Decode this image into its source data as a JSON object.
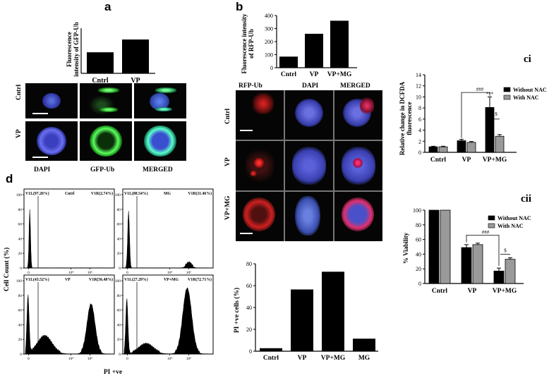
{
  "panels": {
    "a": {
      "letter": "a",
      "chart_data": {
        "type": "bar",
        "categories": [
          "Cntrl",
          "VP"
        ],
        "values": [
          0.28,
          0.45
        ],
        "ylabel": "Fluorescence intensity of GFP-Ub",
        "ylim": [
          0,
          0.6
        ]
      },
      "row_labels": [
        "Cntrl",
        "VP"
      ],
      "col_labels": [
        "DAPI",
        "GFP-Ub",
        "MERGED"
      ]
    },
    "b": {
      "letter": "b",
      "chart_data": {
        "type": "bar",
        "categories": [
          "Cntrl",
          "VP",
          "VP+MG"
        ],
        "values": [
          85,
          260,
          360
        ],
        "ylabel": "Fluorescence intensity of RFP-Ub",
        "yticks": [
          "0",
          "100",
          "200",
          "300",
          "400"
        ],
        "ylim": [
          0,
          400
        ]
      },
      "col_labels": [
        "RFP-Ub",
        "DAPI",
        "MERGED"
      ],
      "row_labels": [
        "Cntrl",
        "VP",
        "VP+MG"
      ]
    },
    "pi": {
      "chart_data": {
        "type": "bar",
        "categories": [
          "Cntrl",
          "VP",
          "VP+MG",
          "MG"
        ],
        "values": [
          2.74,
          56.48,
          72.71,
          11.46
        ],
        "ylabel": "PI +ve cells (%)",
        "yticks": [
          "0",
          "20",
          "40",
          "60",
          "80"
        ],
        "ylim": [
          0,
          80
        ]
      }
    },
    "ci": {
      "label": "ci",
      "chart_data": {
        "type": "bar",
        "categories": [
          "Cntrl",
          "VP",
          "VP+MG"
        ],
        "series": [
          {
            "name": "Without NAC",
            "values": [
              1.0,
              2.1,
              8.1
            ],
            "errors": [
              0.1,
              0.25,
              1.9
            ]
          },
          {
            "name": "With NAC",
            "values": [
              1.0,
              1.8,
              2.9
            ],
            "errors": [
              0.1,
              0.15,
              0.3
            ]
          }
        ],
        "ylabel": "Relative change in DCFDA fluorescence",
        "yticks": [
          "0",
          "2",
          "4",
          "6",
          "8",
          "10",
          "12",
          "14"
        ],
        "ylim": [
          0,
          14
        ],
        "legend": "top-right",
        "annotations": {
          "hash": "###",
          "stars": "***",
          "dollar": "$"
        }
      }
    },
    "cii": {
      "label": "cii",
      "chart_data": {
        "type": "bar",
        "categories": [
          "Cntrl",
          "VP",
          "VP+MG"
        ],
        "series": [
          {
            "name": "Without NAC",
            "values": [
              100,
              49,
              17
            ],
            "errors": [
              0,
              4,
              4
            ]
          },
          {
            "name": "With NAC",
            "values": [
              100,
              53,
              33
            ],
            "errors": [
              0,
              2,
              2
            ]
          }
        ],
        "ylabel": "% Viability",
        "yticks": [
          "0",
          "20",
          "40",
          "60",
          "80",
          "100"
        ],
        "ylim": [
          0,
          100
        ],
        "legend": "top-right",
        "annotations": {
          "hash": "###",
          "dollar": "$"
        }
      }
    },
    "d": {
      "letter": "d",
      "ylabel": "Cell Count (%)",
      "xlabel": "PI +ve",
      "yticks": [
        "0",
        "20",
        "40",
        "60",
        "80",
        "100"
      ],
      "xticks": [
        "0",
        "10⁴",
        "10⁶"
      ],
      "histograms": [
        {
          "left": "V1L(97.26%)",
          "name": "Cntrl",
          "right": "V1R(2.74%)",
          "peaks": [
            [
              0.05,
              0.72,
              0.008
            ]
          ]
        },
        {
          "left": "V1L(88.54%)",
          "name": "MG",
          "right": "V1R(11.46%)",
          "peaks": [
            [
              0.05,
              0.7,
              0.01
            ],
            [
              0.74,
              0.06,
              0.03
            ]
          ]
        },
        {
          "left": "V1L(43.52%)",
          "name": "VP",
          "right": "V1R(56.48%)",
          "peaks": [
            [
              0.03,
              0.72,
              0.012
            ],
            [
              0.22,
              0.22,
              0.08
            ],
            [
              0.75,
              0.62,
              0.045
            ]
          ]
        },
        {
          "left": "V1L(27.29%)",
          "name": "VP+MG",
          "right": "V1R(72.71%)",
          "peaks": [
            [
              0.03,
              0.68,
              0.012
            ],
            [
              0.25,
              0.12,
              0.08
            ],
            [
              0.72,
              0.82,
              0.05
            ]
          ]
        }
      ]
    }
  }
}
